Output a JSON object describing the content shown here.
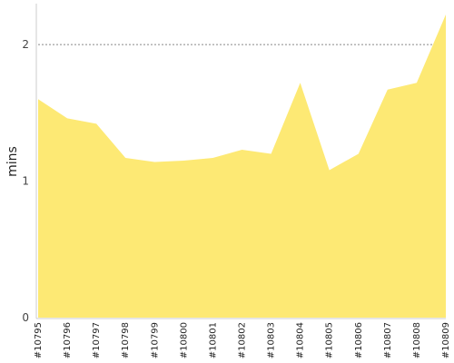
{
  "chart_data": {
    "type": "area",
    "title": "",
    "xlabel": "",
    "ylabel": "mins",
    "categories": [
      "#10795",
      "#10796",
      "#10797",
      "#10798",
      "#10799",
      "#10800",
      "#10801",
      "#10802",
      "#10803",
      "#10804",
      "#10805",
      "#10806",
      "#10807",
      "#10808",
      "#10809"
    ],
    "series": [
      {
        "values": [
          1.6,
          1.46,
          1.42,
          1.17,
          1.14,
          1.15,
          1.17,
          1.23,
          1.2,
          1.72,
          1.08,
          1.2,
          1.67,
          1.72,
          2.22
        ]
      }
    ],
    "ylim": [
      0,
      2.3
    ],
    "yticks": [
      0,
      1,
      2
    ],
    "grid": "horizontal",
    "legend": "none",
    "colors": {
      "area": "#fde974",
      "gridline_major": "#888888",
      "gridline_minor": "#cccccc",
      "axis": "#cccccc"
    }
  }
}
